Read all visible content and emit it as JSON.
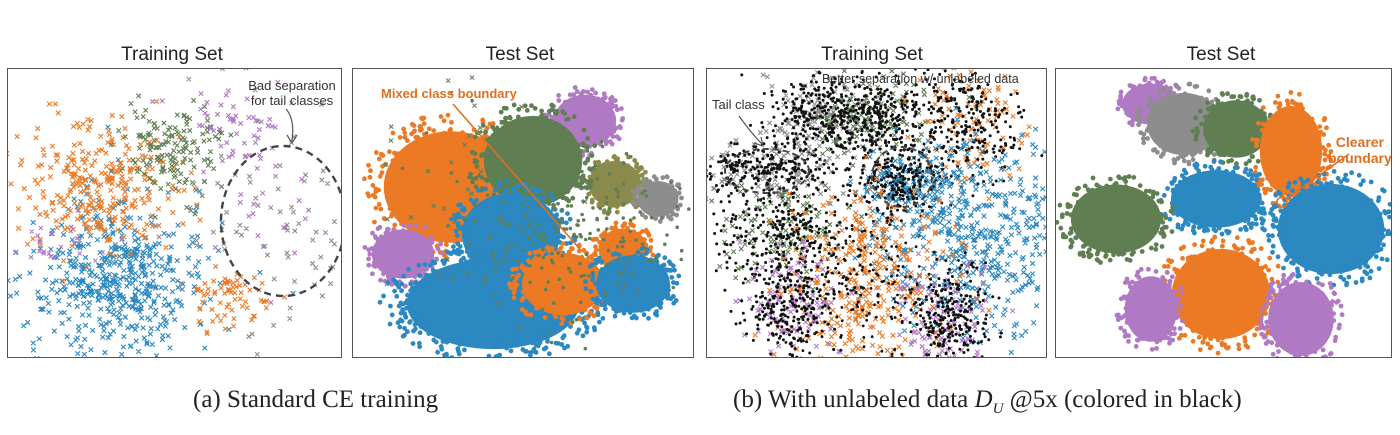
{
  "panels": [
    {
      "title": "Training Set",
      "mode": "sparse-train"
    },
    {
      "title": "Test Set",
      "mode": "dense-test"
    },
    {
      "title": "Training Set",
      "mode": "unlabeled-train"
    },
    {
      "title": "Test Set",
      "mode": "clear-test"
    }
  ],
  "annotations": {
    "bad_separation_line1": "Bad separation",
    "bad_separation_line2": "for tail classes",
    "mixed_boundary": "Mixed class boundary",
    "better_separation": "Better separation w/ unlabeled data",
    "tail_class": "Tail class",
    "clearer_line1": "Clearer",
    "clearer_line2": "boundary"
  },
  "captions": {
    "a": "(a) Standard CE training",
    "b_prefix": "(b) With unlabeled data ",
    "b_symbol": "D",
    "b_sub": "U",
    "b_suffix": " @5x (colored in black)"
  },
  "colors": {
    "blue": "#2b88c0",
    "orange": "#ec7a24",
    "green": "#5f7f52",
    "purple": "#b079c4",
    "gray": "#8d8d8d",
    "olive": "#8a8a4a",
    "black": "#111111",
    "annotation_orange": "#e07020"
  }
}
